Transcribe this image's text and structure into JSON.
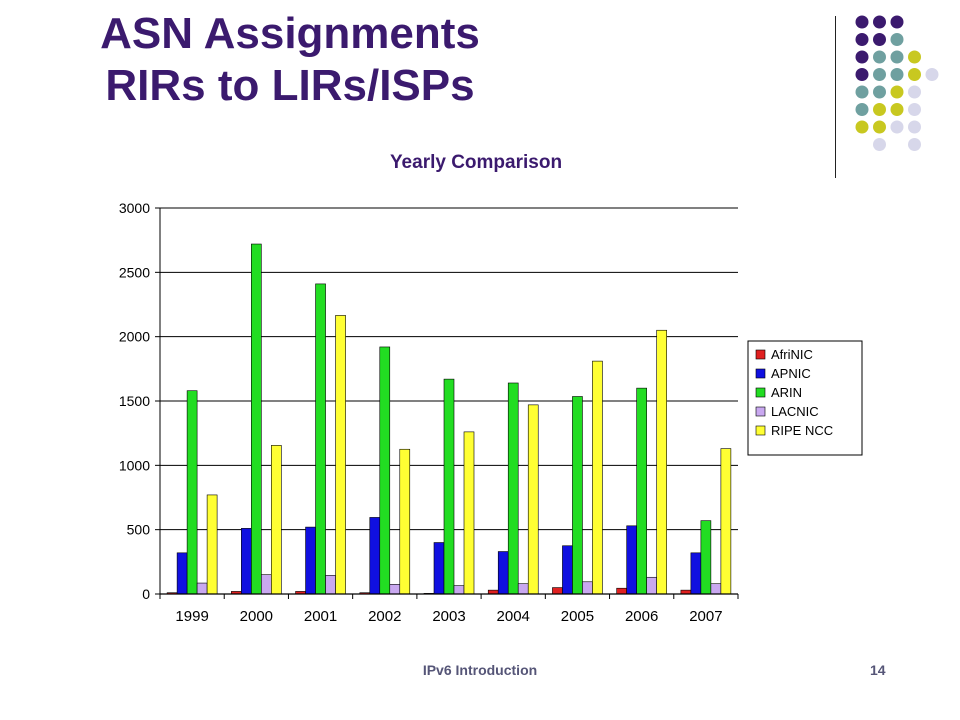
{
  "slide": {
    "title_line1": "ASN Assignments",
    "title_line2": "RIRs to LIRs/ISPs",
    "footer": "IPv6 Introduction",
    "page_number": "14"
  },
  "decoration": {
    "dot_colors": [
      "#3b1a6e",
      "#6fa0a0",
      "#c8c820",
      "#d7d7ea"
    ]
  },
  "chart_data": {
    "type": "bar",
    "title": "Yearly Comparison",
    "categories": [
      "1999",
      "2000",
      "2001",
      "2002",
      "2003",
      "2004",
      "2005",
      "2006",
      "2007"
    ],
    "series": [
      {
        "name": "AfriNIC",
        "color": "#e02020",
        "values": [
          10,
          20,
          20,
          10,
          5,
          30,
          50,
          45,
          30
        ]
      },
      {
        "name": "APNIC",
        "color": "#1010e0",
        "values": [
          320,
          510,
          520,
          595,
          400,
          330,
          375,
          530,
          320
        ]
      },
      {
        "name": "ARIN",
        "color": "#22dd22",
        "values": [
          1580,
          2720,
          2410,
          1920,
          1670,
          1640,
          1535,
          1600,
          570
        ]
      },
      {
        "name": "LACNIC",
        "color": "#c9a8f0",
        "values": [
          85,
          150,
          145,
          75,
          65,
          80,
          95,
          130,
          80
        ]
      },
      {
        "name": "RIPE NCC",
        "color": "#ffff33",
        "values": [
          770,
          1155,
          2165,
          1125,
          1260,
          1470,
          1810,
          2050,
          1130
        ]
      }
    ],
    "yticks": [
      "0",
      "500",
      "1000",
      "1500",
      "2000",
      "2500",
      "3000"
    ],
    "ylim": [
      0,
      3000
    ],
    "xlabel": "",
    "ylabel": "",
    "grid": true,
    "legend_position": "right"
  }
}
